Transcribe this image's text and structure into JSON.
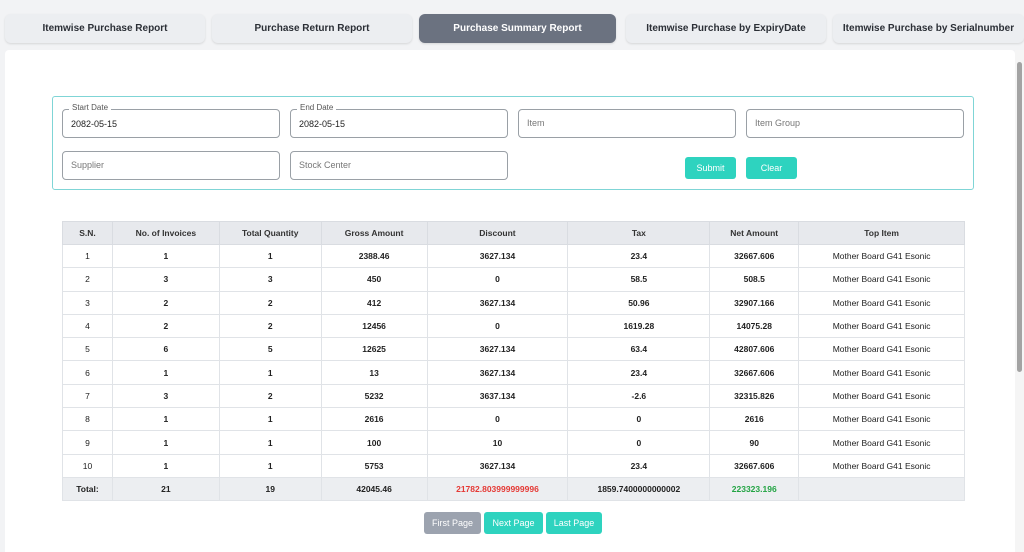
{
  "tabs": [
    {
      "label": "Itemwise Purchase Report",
      "active": false
    },
    {
      "label": "Purchase Return Report",
      "active": false
    },
    {
      "label": "Purchase Summary Report",
      "active": true
    },
    {
      "label": "Itemwise Purchase by ExpiryDate",
      "active": false
    },
    {
      "label": "Itemwise Purchase by Serialnumber",
      "active": false
    }
  ],
  "filters": {
    "start_date": {
      "label": "Start Date",
      "value": "2082-05-15"
    },
    "end_date": {
      "label": "End Date",
      "value": "2082-05-15"
    },
    "item": {
      "placeholder": "Item"
    },
    "item_group": {
      "placeholder": "Item Group"
    },
    "supplier": {
      "placeholder": "Supplier"
    },
    "stock_center": {
      "placeholder": "Stock Center"
    },
    "submit_label": "Submit",
    "clear_label": "Clear"
  },
  "table": {
    "headers": [
      "S.N.",
      "No. of Invoices",
      "Total Quantity",
      "Gross Amount",
      "Discount",
      "Tax",
      "Net Amount",
      "Top Item"
    ],
    "rows": [
      [
        "1",
        "1",
        "1",
        "2388.46",
        "3627.134",
        "23.4",
        "32667.606",
        "Mother Board G41 Esonic"
      ],
      [
        "2",
        "3",
        "3",
        "450",
        "0",
        "58.5",
        "508.5",
        "Mother Board G41 Esonic"
      ],
      [
        "3",
        "2",
        "2",
        "412",
        "3627.134",
        "50.96",
        "32907.166",
        "Mother Board G41 Esonic"
      ],
      [
        "4",
        "2",
        "2",
        "12456",
        "0",
        "1619.28",
        "14075.28",
        "Mother Board G41 Esonic"
      ],
      [
        "5",
        "6",
        "5",
        "12625",
        "3627.134",
        "63.4",
        "42807.606",
        "Mother Board G41 Esonic"
      ],
      [
        "6",
        "1",
        "1",
        "13",
        "3627.134",
        "23.4",
        "32667.606",
        "Mother Board G41 Esonic"
      ],
      [
        "7",
        "3",
        "2",
        "5232",
        "3637.134",
        "-2.6",
        "32315.826",
        "Mother Board G41 Esonic"
      ],
      [
        "8",
        "1",
        "1",
        "2616",
        "0",
        "0",
        "2616",
        "Mother Board G41 Esonic"
      ],
      [
        "9",
        "1",
        "1",
        "100",
        "10",
        "0",
        "90",
        "Mother Board G41 Esonic"
      ],
      [
        "10",
        "1",
        "1",
        "5753",
        "3627.134",
        "23.4",
        "32667.606",
        "Mother Board G41 Esonic"
      ]
    ],
    "total": [
      "Total:",
      "21",
      "19",
      "42045.46",
      "21782.803999999996",
      "1859.7400000000002",
      "223323.196",
      ""
    ]
  },
  "pagination": {
    "first_label": "First Page",
    "next_label": "Next Page",
    "last_label": "Last Page"
  },
  "colors": {
    "accent": "#2ed3bf",
    "active_tab": "#6b7280",
    "discount": "#e53935",
    "net_amount": "#23a444"
  }
}
